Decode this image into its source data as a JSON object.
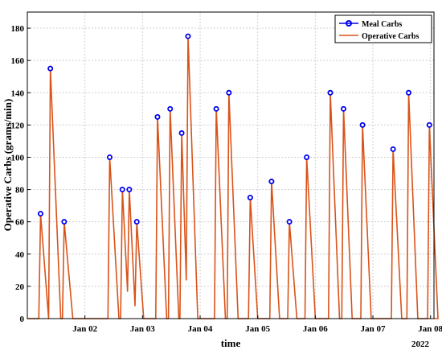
{
  "chart_data": {
    "type": "line",
    "title": "",
    "xlabel": "time",
    "ylabel": "Operative Carbs (grams/min)",
    "x_tick_labels": [
      "Jan 02",
      "Jan 03",
      "Jan 04",
      "Jan 05",
      "Jan 06",
      "Jan 07",
      "Jan 08"
    ],
    "x_year_label": "2022",
    "xlim_days": [
      1.0,
      8.06
    ],
    "ylim": [
      0,
      190
    ],
    "y_ticks": [
      0,
      20,
      40,
      60,
      80,
      100,
      120,
      140,
      160,
      180
    ],
    "grid": true,
    "legend_position": "top-right",
    "legend": [
      "Meal Carbs",
      "Operative Carbs"
    ],
    "colors": {
      "meal": "#0000ee",
      "operative": "#d95319"
    },
    "series": [
      {
        "name": "Meal Carbs",
        "marker": "circle",
        "points": [
          {
            "x": 1.23,
            "y": 65
          },
          {
            "x": 1.4,
            "y": 155
          },
          {
            "x": 1.64,
            "y": 60
          },
          {
            "x": 2.43,
            "y": 100
          },
          {
            "x": 2.65,
            "y": 80
          },
          {
            "x": 2.77,
            "y": 80
          },
          {
            "x": 2.9,
            "y": 60
          },
          {
            "x": 3.26,
            "y": 125
          },
          {
            "x": 3.48,
            "y": 130
          },
          {
            "x": 3.68,
            "y": 115
          },
          {
            "x": 3.79,
            "y": 175
          },
          {
            "x": 4.28,
            "y": 130
          },
          {
            "x": 4.5,
            "y": 140
          },
          {
            "x": 4.87,
            "y": 75
          },
          {
            "x": 5.24,
            "y": 85
          },
          {
            "x": 5.55,
            "y": 60
          },
          {
            "x": 5.85,
            "y": 100
          },
          {
            "x": 6.26,
            "y": 140
          },
          {
            "x": 6.49,
            "y": 130
          },
          {
            "x": 6.82,
            "y": 120
          },
          {
            "x": 7.35,
            "y": 105
          },
          {
            "x": 7.62,
            "y": 140
          },
          {
            "x": 7.98,
            "y": 120
          }
        ]
      },
      {
        "name": "Operative Carbs",
        "points": [
          {
            "x": 1.0,
            "y": 0
          },
          {
            "x": 1.2,
            "y": 0
          },
          {
            "x": 1.23,
            "y": 65
          },
          {
            "x": 1.37,
            "y": 0
          },
          {
            "x": 1.4,
            "y": 155
          },
          {
            "x": 1.58,
            "y": 0
          },
          {
            "x": 1.61,
            "y": 0
          },
          {
            "x": 1.64,
            "y": 60
          },
          {
            "x": 1.79,
            "y": 0
          },
          {
            "x": 2.4,
            "y": 0
          },
          {
            "x": 2.43,
            "y": 100
          },
          {
            "x": 2.59,
            "y": 0
          },
          {
            "x": 2.62,
            "y": 0
          },
          {
            "x": 2.65,
            "y": 80
          },
          {
            "x": 2.74,
            "y": 17
          },
          {
            "x": 2.77,
            "y": 80
          },
          {
            "x": 2.87,
            "y": 8
          },
          {
            "x": 2.9,
            "y": 60
          },
          {
            "x": 3.02,
            "y": 0
          },
          {
            "x": 3.23,
            "y": 0
          },
          {
            "x": 3.26,
            "y": 125
          },
          {
            "x": 3.42,
            "y": 0
          },
          {
            "x": 3.45,
            "y": 0
          },
          {
            "x": 3.48,
            "y": 130
          },
          {
            "x": 3.63,
            "y": 0
          },
          {
            "x": 3.65,
            "y": 0
          },
          {
            "x": 3.68,
            "y": 115
          },
          {
            "x": 3.76,
            "y": 24
          },
          {
            "x": 3.79,
            "y": 175
          },
          {
            "x": 3.96,
            "y": 0
          },
          {
            "x": 4.25,
            "y": 0
          },
          {
            "x": 4.28,
            "y": 130
          },
          {
            "x": 4.44,
            "y": 0
          },
          {
            "x": 4.47,
            "y": 0
          },
          {
            "x": 4.5,
            "y": 140
          },
          {
            "x": 4.66,
            "y": 0
          },
          {
            "x": 4.84,
            "y": 0
          },
          {
            "x": 4.87,
            "y": 75
          },
          {
            "x": 5.0,
            "y": 0
          },
          {
            "x": 5.21,
            "y": 0
          },
          {
            "x": 5.24,
            "y": 85
          },
          {
            "x": 5.38,
            "y": 0
          },
          {
            "x": 5.52,
            "y": 0
          },
          {
            "x": 5.55,
            "y": 60
          },
          {
            "x": 5.68,
            "y": 0
          },
          {
            "x": 5.82,
            "y": 0
          },
          {
            "x": 5.85,
            "y": 100
          },
          {
            "x": 6.0,
            "y": 0
          },
          {
            "x": 6.23,
            "y": 0
          },
          {
            "x": 6.26,
            "y": 140
          },
          {
            "x": 6.42,
            "y": 0
          },
          {
            "x": 6.46,
            "y": 0
          },
          {
            "x": 6.49,
            "y": 130
          },
          {
            "x": 6.64,
            "y": 0
          },
          {
            "x": 6.79,
            "y": 0
          },
          {
            "x": 6.82,
            "y": 120
          },
          {
            "x": 6.97,
            "y": 0
          },
          {
            "x": 7.32,
            "y": 0
          },
          {
            "x": 7.35,
            "y": 105
          },
          {
            "x": 7.5,
            "y": 0
          },
          {
            "x": 7.59,
            "y": 0
          },
          {
            "x": 7.62,
            "y": 140
          },
          {
            "x": 7.78,
            "y": 0
          },
          {
            "x": 7.95,
            "y": 0
          },
          {
            "x": 7.98,
            "y": 120
          },
          {
            "x": 8.13,
            "y": 0
          },
          {
            "x": 8.06,
            "y": 0
          }
        ]
      }
    ]
  }
}
